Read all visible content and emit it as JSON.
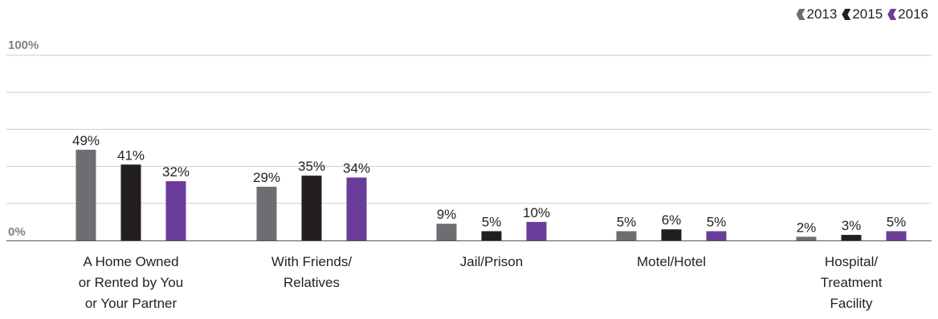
{
  "chart_data": {
    "type": "bar",
    "title": "",
    "xlabel": "",
    "ylabel": "",
    "ylim": [
      0,
      100
    ],
    "y_tick_labels": [
      "0%",
      "100%"
    ],
    "grid": true,
    "legend_position": "top-right",
    "categories": [
      "A Home Owned\nor Rented by You\nor Your Partner",
      "With Friends/\nRelatives",
      "Jail/Prison",
      "Motel/Hotel",
      "Hospital/\nTreatment\nFacility"
    ],
    "series": [
      {
        "name": "2013",
        "color": "#6d6e71",
        "values": [
          49,
          29,
          9,
          5,
          2
        ],
        "labels": [
          "49%",
          "29%",
          "9%",
          "5%",
          "2%"
        ]
      },
      {
        "name": "2015",
        "color": "#231f20",
        "values": [
          41,
          35,
          5,
          6,
          3
        ],
        "labels": [
          "41%",
          "35%",
          "5%",
          "6%",
          "3%"
        ]
      },
      {
        "name": "2016",
        "color": "#6a3d9a",
        "values": [
          32,
          34,
          10,
          5,
          5
        ],
        "labels": [
          "32%",
          "34%",
          "10%",
          "5%",
          "5%"
        ]
      }
    ]
  }
}
